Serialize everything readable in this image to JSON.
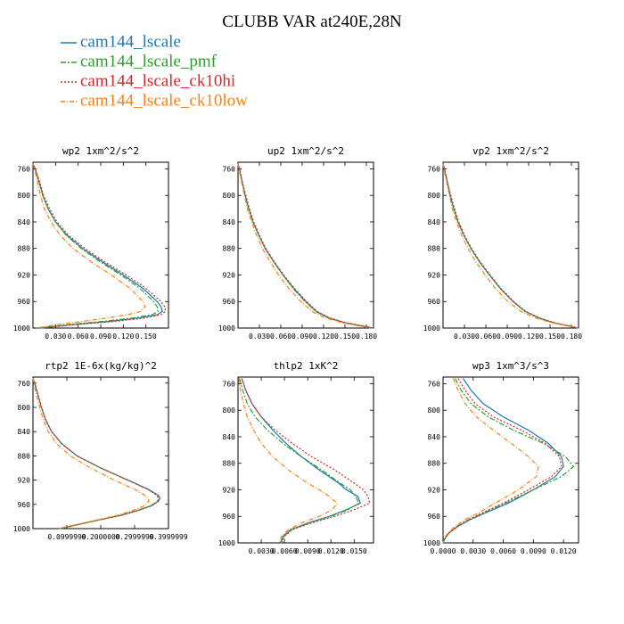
{
  "title": "CLUBB VAR at240E,28N",
  "legend": [
    {
      "name": "cam144_lscale",
      "color": "#1f77b4",
      "dash": ""
    },
    {
      "name": "cam144_lscale_pmf",
      "color": "#2ca02c",
      "dash": "6,2,2,2"
    },
    {
      "name": "cam144_lscale_ck10hi",
      "color": "#d62728",
      "dash": "2,2"
    },
    {
      "name": "cam144_lscale_ck10low",
      "color": "#ff7f0e",
      "dash": "5,2,1,2"
    }
  ],
  "chart_data": [
    {
      "type": "line",
      "title": "wp2   1xm^2/s^2",
      "ylim": [
        1000,
        750
      ],
      "yticks": [
        "760",
        "800",
        "840",
        "880",
        "920",
        "960",
        "1000"
      ],
      "xlim": [
        0,
        0.18
      ],
      "xticks": [
        0.03,
        0.06,
        0.09,
        0.12,
        0.15
      ],
      "xtick_labels": [
        "0.030",
        "0.060",
        "0.090",
        "0.120",
        "0.150"
      ],
      "y": [
        752,
        760,
        780,
        800,
        820,
        840,
        860,
        880,
        900,
        920,
        940,
        960,
        968,
        975,
        980,
        985,
        990,
        995,
        1000
      ],
      "series": [
        {
          "name": "cam144_lscale",
          "values": [
            0.0,
            0.003,
            0.008,
            0.013,
            0.02,
            0.03,
            0.045,
            0.066,
            0.092,
            0.12,
            0.146,
            0.165,
            0.17,
            0.172,
            0.165,
            0.14,
            0.1,
            0.05,
            0.01
          ]
        },
        {
          "name": "cam144_lscale_pmf",
          "values": [
            0.0,
            0.003,
            0.008,
            0.013,
            0.02,
            0.03,
            0.044,
            0.064,
            0.089,
            0.117,
            0.142,
            0.16,
            0.165,
            0.166,
            0.158,
            0.132,
            0.092,
            0.045,
            0.008
          ]
        },
        {
          "name": "cam144_lscale_ck10hi",
          "values": [
            0.0,
            0.003,
            0.009,
            0.014,
            0.022,
            0.032,
            0.047,
            0.069,
            0.095,
            0.124,
            0.15,
            0.17,
            0.175,
            0.176,
            0.17,
            0.148,
            0.108,
            0.055,
            0.012
          ]
        },
        {
          "name": "cam144_lscale_ck10low",
          "values": [
            0.0,
            0.002,
            0.006,
            0.01,
            0.015,
            0.024,
            0.036,
            0.053,
            0.077,
            0.104,
            0.129,
            0.146,
            0.149,
            0.143,
            0.125,
            0.098,
            0.065,
            0.03,
            0.005
          ]
        }
      ]
    },
    {
      "type": "line",
      "title": "up2   1xm^2/s^2",
      "ylim": [
        1000,
        750
      ],
      "yticks": [
        "760",
        "800",
        "840",
        "880",
        "920",
        "960",
        "1000"
      ],
      "xlim": [
        0,
        0.19
      ],
      "xticks": [
        0.03,
        0.06,
        0.09,
        0.12,
        0.15,
        0.18
      ],
      "xtick_labels": [
        "0.030",
        "0.060",
        "0.090",
        "0.120",
        "0.150",
        "0.180"
      ],
      "y": [
        752,
        760,
        780,
        800,
        820,
        840,
        860,
        880,
        900,
        920,
        940,
        960,
        975,
        985,
        992,
        1000
      ],
      "series": [
        {
          "name": "cam144_lscale",
          "values": [
            0.0,
            0.002,
            0.006,
            0.01,
            0.015,
            0.021,
            0.029,
            0.038,
            0.05,
            0.063,
            0.078,
            0.095,
            0.11,
            0.128,
            0.15,
            0.19
          ]
        },
        {
          "name": "cam144_lscale_pmf",
          "values": [
            0.0,
            0.002,
            0.006,
            0.01,
            0.015,
            0.021,
            0.029,
            0.038,
            0.05,
            0.063,
            0.077,
            0.094,
            0.109,
            0.127,
            0.149,
            0.188
          ]
        },
        {
          "name": "cam144_lscale_ck10hi",
          "values": [
            0.0,
            0.002,
            0.006,
            0.011,
            0.016,
            0.022,
            0.03,
            0.039,
            0.051,
            0.064,
            0.079,
            0.096,
            0.111,
            0.129,
            0.151,
            0.19
          ]
        },
        {
          "name": "cam144_lscale_ck10low",
          "values": [
            0.0,
            0.001,
            0.005,
            0.009,
            0.013,
            0.019,
            0.026,
            0.034,
            0.045,
            0.057,
            0.071,
            0.088,
            0.104,
            0.123,
            0.146,
            0.185
          ]
        }
      ]
    },
    {
      "type": "line",
      "title": "vp2   1xm^2/s^2",
      "ylim": [
        1000,
        750
      ],
      "yticks": [
        "760",
        "800",
        "840",
        "880",
        "920",
        "960",
        "1000"
      ],
      "xlim": [
        0,
        0.19
      ],
      "xticks": [
        0.03,
        0.06,
        0.09,
        0.12,
        0.15,
        0.18
      ],
      "xtick_labels": [
        "0.030",
        "0.060",
        "0.090",
        "0.120",
        "0.150",
        "0.180"
      ],
      "y": [
        752,
        760,
        780,
        800,
        820,
        840,
        860,
        880,
        900,
        920,
        940,
        960,
        975,
        985,
        992,
        1000
      ],
      "series": [
        {
          "name": "cam144_lscale",
          "values": [
            0.0,
            0.002,
            0.006,
            0.01,
            0.015,
            0.021,
            0.029,
            0.039,
            0.051,
            0.065,
            0.08,
            0.098,
            0.115,
            0.135,
            0.155,
            0.19
          ]
        },
        {
          "name": "cam144_lscale_pmf",
          "values": [
            0.0,
            0.002,
            0.006,
            0.01,
            0.015,
            0.021,
            0.029,
            0.039,
            0.051,
            0.065,
            0.08,
            0.098,
            0.115,
            0.135,
            0.155,
            0.19
          ]
        },
        {
          "name": "cam144_lscale_ck10hi",
          "values": [
            0.0,
            0.002,
            0.006,
            0.011,
            0.016,
            0.022,
            0.03,
            0.04,
            0.052,
            0.066,
            0.081,
            0.099,
            0.116,
            0.136,
            0.156,
            0.19
          ]
        },
        {
          "name": "cam144_lscale_ck10low",
          "values": [
            0.0,
            0.001,
            0.005,
            0.009,
            0.013,
            0.019,
            0.026,
            0.035,
            0.046,
            0.059,
            0.073,
            0.091,
            0.109,
            0.13,
            0.152,
            0.19
          ]
        }
      ]
    },
    {
      "type": "line",
      "title": "rtp2   1E-6x(kg/kg)^2",
      "ylim": [
        1000,
        750
      ],
      "yticks": [
        "760",
        "800",
        "840",
        "880",
        "920",
        "960",
        "1000"
      ],
      "xlim": [
        0,
        0.4
      ],
      "xticks": [
        0.1,
        0.2,
        0.3,
        0.4
      ],
      "xtick_labels": [
        "0.0999999",
        "0.2000000",
        "0.2999999",
        "0.3999999"
      ],
      "y": [
        752,
        760,
        780,
        800,
        820,
        840,
        860,
        880,
        900,
        920,
        935,
        945,
        950,
        955,
        962,
        970,
        978,
        985,
        990,
        995,
        1000
      ],
      "series": [
        {
          "name": "cam144_lscale",
          "values": [
            0.0,
            0.005,
            0.015,
            0.025,
            0.037,
            0.055,
            0.085,
            0.13,
            0.2,
            0.28,
            0.34,
            0.37,
            0.375,
            0.37,
            0.35,
            0.31,
            0.26,
            0.2,
            0.16,
            0.12,
            0.08
          ]
        },
        {
          "name": "cam144_lscale_pmf",
          "values": [
            0.0,
            0.005,
            0.015,
            0.025,
            0.037,
            0.055,
            0.085,
            0.13,
            0.2,
            0.28,
            0.338,
            0.368,
            0.375,
            0.368,
            0.348,
            0.308,
            0.258,
            0.198,
            0.158,
            0.118,
            0.078
          ]
        },
        {
          "name": "cam144_lscale_ck10hi",
          "values": [
            0.0,
            0.005,
            0.015,
            0.025,
            0.037,
            0.055,
            0.085,
            0.13,
            0.2,
            0.28,
            0.34,
            0.365,
            0.37,
            0.368,
            0.352,
            0.312,
            0.262,
            0.202,
            0.162,
            0.122,
            0.082
          ]
        },
        {
          "name": "cam144_lscale_ck10low",
          "values": [
            0.0,
            0.003,
            0.01,
            0.02,
            0.03,
            0.045,
            0.07,
            0.11,
            0.17,
            0.24,
            0.3,
            0.33,
            0.34,
            0.342,
            0.33,
            0.295,
            0.25,
            0.195,
            0.155,
            0.115,
            0.075
          ]
        }
      ]
    },
    {
      "type": "line",
      "title": "thlp2   1xK^2",
      "ylim": [
        1000,
        750
      ],
      "yticks": [
        "760",
        "800",
        "840",
        "880",
        "920",
        "960",
        "1000"
      ],
      "xlim": [
        0,
        0.0175
      ],
      "xticks": [
        0.003,
        0.006,
        0.009,
        0.012,
        0.015
      ],
      "xtick_labels": [
        "0.0030",
        "0.0060",
        "0.0090",
        "0.0120",
        "0.0150"
      ],
      "y": [
        752,
        770,
        790,
        810,
        830,
        850,
        870,
        890,
        910,
        920,
        930,
        940,
        950,
        960,
        970,
        980,
        990,
        1000
      ],
      "series": [
        {
          "name": "cam144_lscale",
          "values": [
            0.0005,
            0.001,
            0.0018,
            0.003,
            0.0045,
            0.0062,
            0.0082,
            0.0105,
            0.013,
            0.014,
            0.0155,
            0.0158,
            0.014,
            0.0118,
            0.009,
            0.0068,
            0.0058,
            0.0055
          ]
        },
        {
          "name": "cam144_lscale_pmf",
          "values": [
            0.0002,
            0.0006,
            0.0012,
            0.0022,
            0.0038,
            0.0058,
            0.0082,
            0.0108,
            0.0132,
            0.0145,
            0.0152,
            0.0156,
            0.0142,
            0.012,
            0.0092,
            0.0069,
            0.0059,
            0.0056
          ]
        },
        {
          "name": "cam144_lscale_ck10hi",
          "values": [
            0.0005,
            0.001,
            0.0018,
            0.003,
            0.0048,
            0.007,
            0.0095,
            0.0125,
            0.015,
            0.0162,
            0.0168,
            0.017,
            0.015,
            0.0125,
            0.0095,
            0.007,
            0.006,
            0.0057
          ]
        },
        {
          "name": "cam144_lscale_ck10low",
          "values": [
            0.0001,
            0.0003,
            0.0007,
            0.0012,
            0.002,
            0.003,
            0.0045,
            0.0065,
            0.009,
            0.0105,
            0.0118,
            0.0128,
            0.0122,
            0.0105,
            0.0082,
            0.0065,
            0.0056,
            0.0054
          ]
        }
      ]
    },
    {
      "type": "line",
      "title": "wp3   1xm^3/s^3",
      "ylim": [
        1000,
        750
      ],
      "yticks": [
        "760",
        "800",
        "840",
        "880",
        "920",
        "960",
        "1000"
      ],
      "xlim": [
        0,
        0.0135
      ],
      "xticks": [
        0,
        0.003,
        0.006,
        0.009,
        0.012
      ],
      "xtick_labels": [
        "0.0000",
        "0.0030",
        "0.0060",
        "0.0090",
        "0.0120"
      ],
      "y": [
        752,
        770,
        790,
        810,
        830,
        850,
        870,
        885,
        900,
        920,
        940,
        955,
        965,
        975,
        985,
        993,
        1000
      ],
      "series": [
        {
          "name": "cam144_lscale",
          "values": [
            0.002,
            0.0028,
            0.004,
            0.006,
            0.0085,
            0.0105,
            0.0118,
            0.012,
            0.0112,
            0.009,
            0.0065,
            0.0042,
            0.0027,
            0.0015,
            0.0006,
            0.0002,
            0.0
          ]
        },
        {
          "name": "cam144_lscale_pmf",
          "values": [
            0.0012,
            0.0018,
            0.0028,
            0.0045,
            0.007,
            0.01,
            0.0122,
            0.013,
            0.0118,
            0.009,
            0.0062,
            0.004,
            0.0026,
            0.0014,
            0.0006,
            0.0002,
            0.0
          ]
        },
        {
          "name": "cam144_lscale_ck10hi",
          "values": [
            0.0015,
            0.0022,
            0.0032,
            0.005,
            0.0078,
            0.0102,
            0.0116,
            0.0118,
            0.0108,
            0.0085,
            0.006,
            0.0039,
            0.0025,
            0.0014,
            0.0006,
            0.0002,
            0.0
          ]
        },
        {
          "name": "cam144_lscale_ck10low",
          "values": [
            0.001,
            0.0015,
            0.0022,
            0.0033,
            0.005,
            0.0068,
            0.0085,
            0.0095,
            0.0093,
            0.0075,
            0.0052,
            0.0035,
            0.0022,
            0.0012,
            0.0005,
            0.0001,
            0.0
          ]
        }
      ]
    }
  ]
}
